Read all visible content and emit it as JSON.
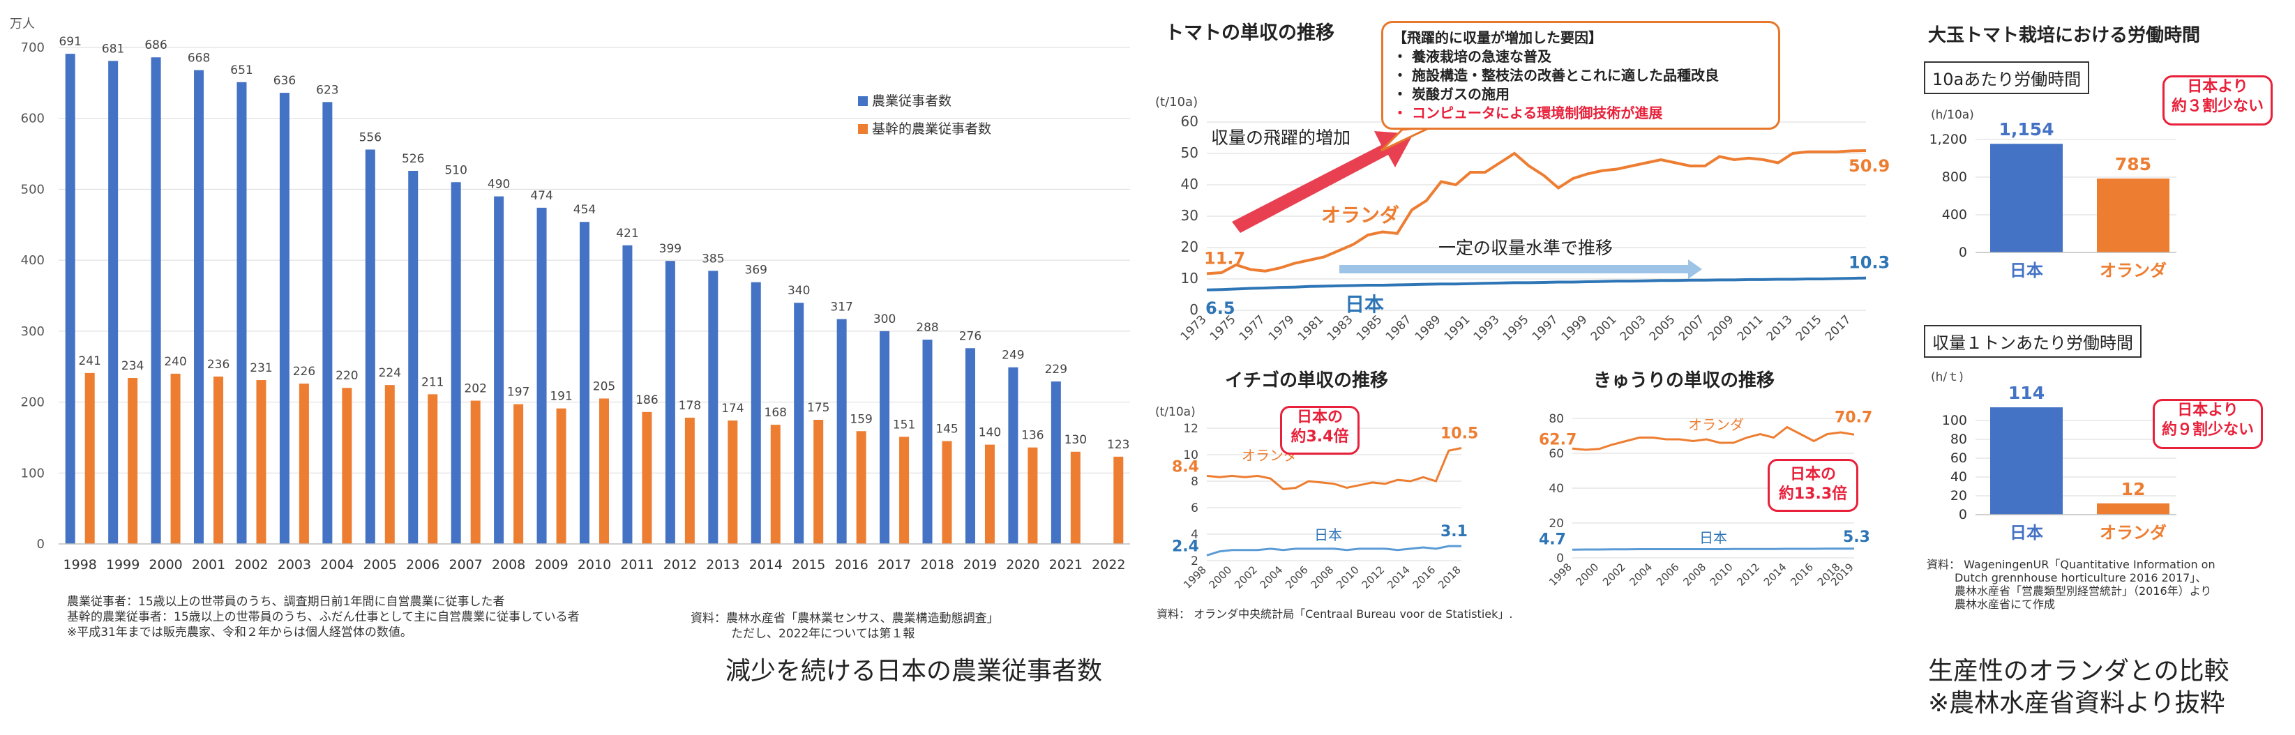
{
  "panel1": {
    "unit": "万人",
    "legend": [
      "農業従事者数",
      "基幹的農業従事者数"
    ],
    "colors": {
      "blue": "#4472c4",
      "orange": "#ed7d31"
    },
    "notes": [
      "農業従事者：15歳以上の世帯員のうち、調査期日前1年間に自営農業に従事した者",
      "基幹的農業従事者：15歳以上の世帯員のうち、ふだん仕事として主に自営農業に従事している者",
      "※平成31年までは販売農家、令和２年からは個人経営体の数値。"
    ],
    "source": [
      "資料：農林水産省「農林業センサス、農業構造動態調査」",
      "ただし、2022年については第１報"
    ],
    "caption": "減少を続ける日本の農業従事者数"
  },
  "tomato": {
    "title": "トマトの単収の推移",
    "unit": "(t/10a)",
    "annot_rise": "収量の飛躍的増加",
    "annot_flat": "一定の収量水準で推移",
    "reasons": {
      "title": "【飛躍的に収量が増加した要因】",
      "items": [
        "・ 養液栽培の急速な普及",
        "・ 施設構造・整枝法の改善とこれに適した品種改良",
        "・ 炭酸ガスの施用"
      ],
      "highlight": "・ コンピュータによる環境制御技術が進展"
    }
  },
  "strawberry": {
    "title": "イチゴの単収の推移",
    "unit": "(t/10a)",
    "callout": [
      "日本の",
      "約3.4倍"
    ]
  },
  "cucumber": {
    "title": "きゅうりの単収の推移",
    "callout": [
      "日本の",
      "約13.3倍"
    ]
  },
  "mid_source": "資料：  オランダ中央統計局「Centraal Bureau voor de Statistiek」.",
  "labor": {
    "title": "大玉トマト栽培における労働時間",
    "sub1": "10aあたり労働時間",
    "sub2": "収量１トンあたり労働時間",
    "callout1": [
      "日本より",
      "約３割少ない"
    ],
    "callout2": [
      "日本より",
      "約９割少ない"
    ],
    "source": [
      "資料：  WageningenUR「Quantitative Information on",
      "Dutch grennhouse horticulture 2016 2017」、",
      "農林水産省「営農類型別経営統計」（2016年）より",
      "農林水産省にて作成"
    ],
    "caption": [
      "生産性のオランダとの比較",
      "※農林水産省資料より抜粋"
    ]
  },
  "chart_data": [
    {
      "type": "bar",
      "title": "",
      "categories": [
        "1998",
        "1999",
        "2000",
        "2001",
        "2002",
        "2003",
        "2004",
        "2005",
        "2006",
        "2007",
        "2008",
        "2009",
        "2010",
        "2011",
        "2012",
        "2013",
        "2014",
        "2015",
        "2016",
        "2017",
        "2018",
        "2019",
        "2020",
        "2021",
        "2022"
      ],
      "series": [
        {
          "name": "農業従事者数",
          "color": "#4472c4",
          "values": [
            691,
            681,
            686,
            668,
            651,
            636,
            623,
            556,
            526,
            510,
            490,
            474,
            454,
            421,
            399,
            385,
            369,
            340,
            317,
            300,
            288,
            276,
            249,
            229,
            null
          ]
        },
        {
          "name": "基幹的農業従事者数",
          "color": "#ed7d31",
          "values": [
            241,
            234,
            240,
            236,
            231,
            226,
            220,
            224,
            211,
            202,
            197,
            191,
            205,
            186,
            178,
            174,
            168,
            175,
            159,
            151,
            145,
            140,
            136,
            130,
            123
          ]
        }
      ],
      "ylabel": "万人",
      "ylim": [
        0,
        700
      ],
      "yticks": [
        0,
        100,
        200,
        300,
        400,
        500,
        600,
        700
      ],
      "grid": true,
      "legend": "top-right"
    },
    {
      "type": "line",
      "title": "トマトの単収の推移",
      "x": [
        1973,
        1974,
        1975,
        1976,
        1977,
        1978,
        1979,
        1980,
        1981,
        1982,
        1983,
        1984,
        1985,
        1986,
        1987,
        1988,
        1989,
        1990,
        1991,
        1992,
        1993,
        1994,
        1995,
        1996,
        1997,
        1998,
        1999,
        2000,
        2001,
        2002,
        2003,
        2004,
        2005,
        2006,
        2007,
        2008,
        2009,
        2010,
        2011,
        2012,
        2013,
        2014,
        2015,
        2016,
        2017,
        2018
      ],
      "xticks": [
        "1973",
        "1975",
        "1977",
        "1979",
        "1981",
        "1983",
        "1985",
        "1987",
        "1989",
        "1991",
        "1993",
        "1995",
        "1997",
        "1999",
        "2001",
        "2003",
        "2005",
        "2007",
        "2009",
        "2011",
        "2013",
        "2015",
        "2017"
      ],
      "series": [
        {
          "name": "オランダ",
          "color": "#ed7d31",
          "values": [
            11.7,
            12,
            14.5,
            13,
            12.5,
            13.5,
            15,
            16,
            17,
            19,
            21,
            24,
            25,
            24.5,
            32,
            35,
            41,
            40,
            44,
            44,
            47,
            50,
            46,
            43,
            39,
            42,
            43.5,
            44.5,
            45,
            46,
            47,
            48,
            47,
            46,
            46,
            49,
            48,
            48.5,
            48,
            47,
            50,
            50.5,
            50.5,
            50.5,
            50.8,
            50.9
          ]
        },
        {
          "name": "日本",
          "color": "#2e75b6",
          "values": [
            6.5,
            6.6,
            6.8,
            7,
            7.1,
            7.3,
            7.4,
            7.6,
            7.7,
            7.8,
            7.9,
            8,
            8,
            8.1,
            8.2,
            8.3,
            8.4,
            8.4,
            8.5,
            8.6,
            8.7,
            8.8,
            8.8,
            8.9,
            9,
            9,
            9.1,
            9.2,
            9.3,
            9.3,
            9.4,
            9.5,
            9.5,
            9.6,
            9.6,
            9.7,
            9.7,
            9.8,
            9.8,
            9.9,
            9.9,
            10,
            10,
            10.1,
            10.2,
            10.3
          ]
        }
      ],
      "ylabel": "(t/10a)",
      "ylim": [
        0,
        60
      ],
      "yticks": [
        0,
        10,
        20,
        30,
        40,
        50,
        60
      ],
      "grid": true,
      "labels": {
        "nl_start": "11.7",
        "nl_end": "50.9",
        "jp_start": "6.5",
        "jp_end": "10.3",
        "nl_name": "オランダ",
        "jp_name": "日本"
      }
    },
    {
      "type": "line",
      "title": "イチゴの単収の推移",
      "x": [
        1998,
        1999,
        2000,
        2001,
        2002,
        2003,
        2004,
        2005,
        2006,
        2007,
        2008,
        2009,
        2010,
        2011,
        2012,
        2013,
        2014,
        2015,
        2016,
        2017,
        2018
      ],
      "xticks": [
        "1998",
        "2000",
        "2002",
        "2004",
        "2006",
        "2008",
        "2010",
        "2012",
        "2014",
        "2016",
        "2018"
      ],
      "series": [
        {
          "name": "オランダ",
          "color": "#ed7d31",
          "values": [
            8.4,
            8.3,
            8.4,
            8.3,
            8.4,
            8.2,
            7.4,
            7.5,
            8.0,
            7.9,
            7.8,
            7.5,
            7.7,
            7.9,
            7.8,
            8.1,
            8.0,
            8.3,
            8.0,
            10.3,
            10.5
          ]
        },
        {
          "name": "日本",
          "color": "#5b9bd5",
          "values": [
            2.4,
            2.7,
            2.8,
            2.8,
            2.8,
            2.9,
            2.8,
            2.9,
            2.9,
            2.9,
            2.9,
            2.8,
            2.9,
            2.9,
            2.9,
            2.8,
            2.9,
            3.0,
            2.9,
            3.1,
            3.1
          ]
        }
      ],
      "ylabel": "(t/10a)",
      "ylim": [
        2,
        12
      ],
      "yticks": [
        2,
        4,
        6,
        8,
        10,
        12
      ],
      "grid": true,
      "labels": {
        "nl_start": "8.4",
        "nl_end": "10.5",
        "jp_start": "2.4",
        "jp_end": "3.1",
        "nl_name": "オランダ",
        "jp_name": "日本"
      }
    },
    {
      "type": "line",
      "title": "きゅうりの単収の推移",
      "x": [
        1998,
        1999,
        2000,
        2001,
        2002,
        2003,
        2004,
        2005,
        2006,
        2007,
        2008,
        2009,
        2010,
        2011,
        2012,
        2013,
        2014,
        2015,
        2016,
        2017,
        2018,
        2019
      ],
      "xticks": [
        "1998",
        "2000",
        "2002",
        "2004",
        "2006",
        "2008",
        "2010",
        "2012",
        "2014",
        "2016",
        "2018",
        "2019"
      ],
      "series": [
        {
          "name": "オランダ",
          "color": "#ed7d31",
          "values": [
            62.7,
            62,
            62.5,
            65,
            67,
            69,
            69,
            68,
            68,
            67,
            68,
            66,
            66,
            69,
            71,
            69,
            75,
            71,
            67,
            71,
            72,
            70.7
          ]
        },
        {
          "name": "日本",
          "color": "#5b9bd5",
          "values": [
            4.7,
            4.8,
            4.8,
            4.9,
            4.9,
            5,
            5,
            5,
            5,
            5,
            5,
            5,
            5.1,
            5.1,
            5.1,
            5.1,
            5.2,
            5.2,
            5.2,
            5.3,
            5.3,
            5.3
          ]
        }
      ],
      "ylim": [
        0,
        80
      ],
      "yticks": [
        0,
        20,
        40,
        60,
        80
      ],
      "grid": true,
      "labels": {
        "nl_start": "62.7",
        "nl_end": "70.7",
        "jp_start": "4.7",
        "jp_end": "5.3",
        "nl_name": "オランダ",
        "jp_name": "日本"
      }
    },
    {
      "type": "bar",
      "title": "10aあたり労働時間",
      "categories": [
        "日本",
        "オランダ"
      ],
      "values": [
        1154,
        785
      ],
      "value_labels": [
        "1,154",
        "785"
      ],
      "colors": [
        "#4472c4",
        "#ed7d31"
      ],
      "ylabel": "(h/10a)",
      "ylim": [
        0,
        1200
      ],
      "yticks": [
        "0",
        "400",
        "800",
        "1,200"
      ],
      "grid": true
    },
    {
      "type": "bar",
      "title": "収量１トンあたり労働時間",
      "categories": [
        "日本",
        "オランダ"
      ],
      "values": [
        114,
        12
      ],
      "value_labels": [
        "114",
        "12"
      ],
      "colors": [
        "#4472c4",
        "#ed7d31"
      ],
      "ylabel": "(h/ｔ)",
      "ylim": [
        0,
        120
      ],
      "yticks": [
        "0",
        "20",
        "40",
        "60",
        "80",
        "100"
      ],
      "grid": true
    }
  ]
}
